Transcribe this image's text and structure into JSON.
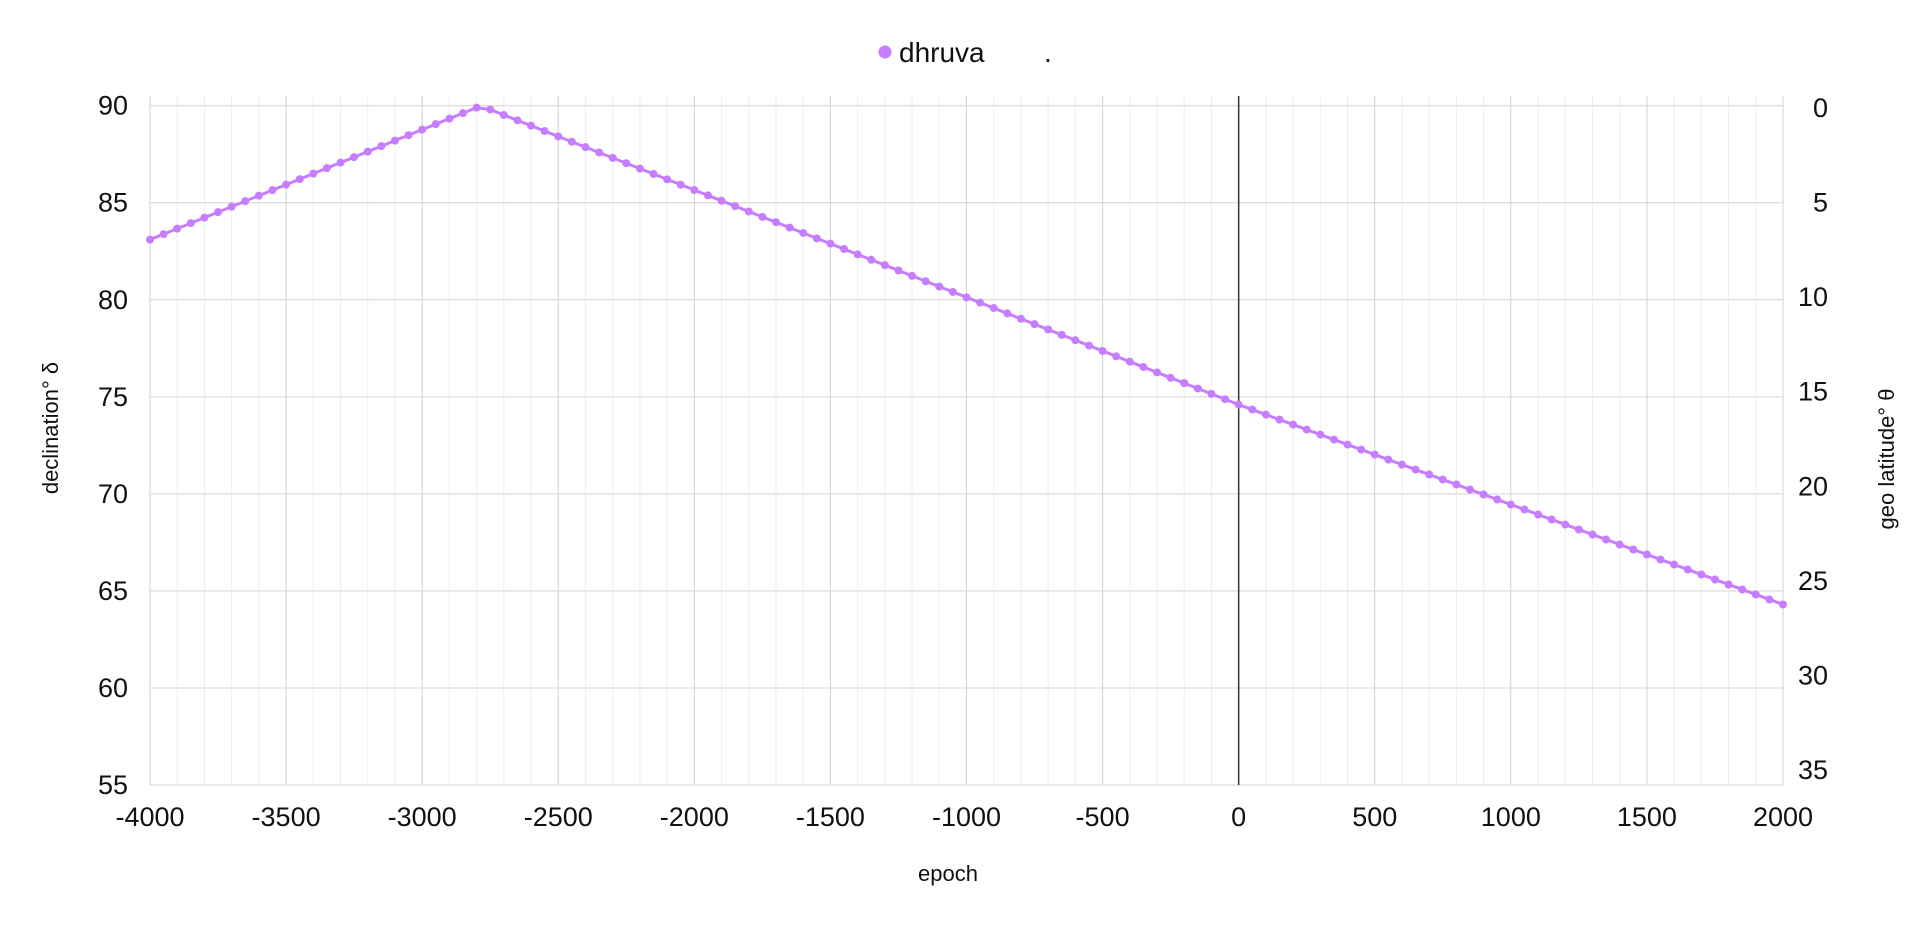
{
  "chart_data": {
    "type": "line",
    "legend": {
      "position": "top",
      "entries": [
        "dhruva",
        "."
      ]
    },
    "xlabel": "epoch",
    "ylabel": "declination° δ",
    "y2label": "geo latitude°  θ",
    "xlim": [
      -4000,
      2000
    ],
    "ylim": [
      55,
      90.5
    ],
    "y2lim": [
      0,
      35
    ],
    "y2_inverted": true,
    "x_ticks": [
      "-4000",
      "-3500",
      "-3000",
      "-2500",
      "-2000",
      "-1500",
      "-1000",
      "-500",
      "0",
      "500",
      "1000",
      "1500",
      "2000"
    ],
    "y_ticks": [
      "90",
      "85",
      "80",
      "75",
      "70",
      "65",
      "60",
      "55"
    ],
    "y2_ticks": [
      "0",
      "5",
      "10",
      "15",
      "20",
      "25",
      "30",
      "35"
    ],
    "grid": true,
    "minor_x_grid_step": 100,
    "zero_line": true,
    "series": [
      {
        "name": "dhruva",
        "color": "#c77dff",
        "marker": "circle",
        "point_step": 50,
        "vertices": [
          {
            "x": -4000,
            "y": 83.1
          },
          {
            "x": -2800,
            "y": 89.9
          },
          {
            "x": -2750,
            "y": 89.8
          },
          {
            "x": 0,
            "y": 74.6
          },
          {
            "x": 2000,
            "y": 64.3
          }
        ]
      }
    ]
  }
}
